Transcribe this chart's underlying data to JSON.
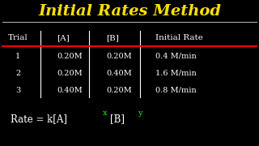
{
  "title": "Initial Rates Method",
  "title_color": "#FFE000",
  "bg_color": "#000000",
  "table_text_color": "#FFFFFF",
  "header_row": [
    "Trial",
    "[A]",
    "[B]",
    "Initial Rate"
  ],
  "rows": [
    [
      "1",
      "0.20M",
      "0.20M",
      "0.4 M/min"
    ],
    [
      "2",
      "0.20M",
      "0.40M",
      "1.6 M/min"
    ],
    [
      "3",
      "0.40M",
      "0.20M",
      "0.8 M/min"
    ]
  ],
  "formula_main": "Rate = k[A]",
  "formula_sup1": "x",
  "formula_mid": "[B]",
  "formula_sup2": "y",
  "formula_color": "#FFFFFF",
  "sup_color_x": "#00FF00",
  "sup_color_y": "#00FF00",
  "divider_color": "#FF0000",
  "col_divider_color": "#FFFFFF",
  "title_underline_color": "#AAAAAA"
}
